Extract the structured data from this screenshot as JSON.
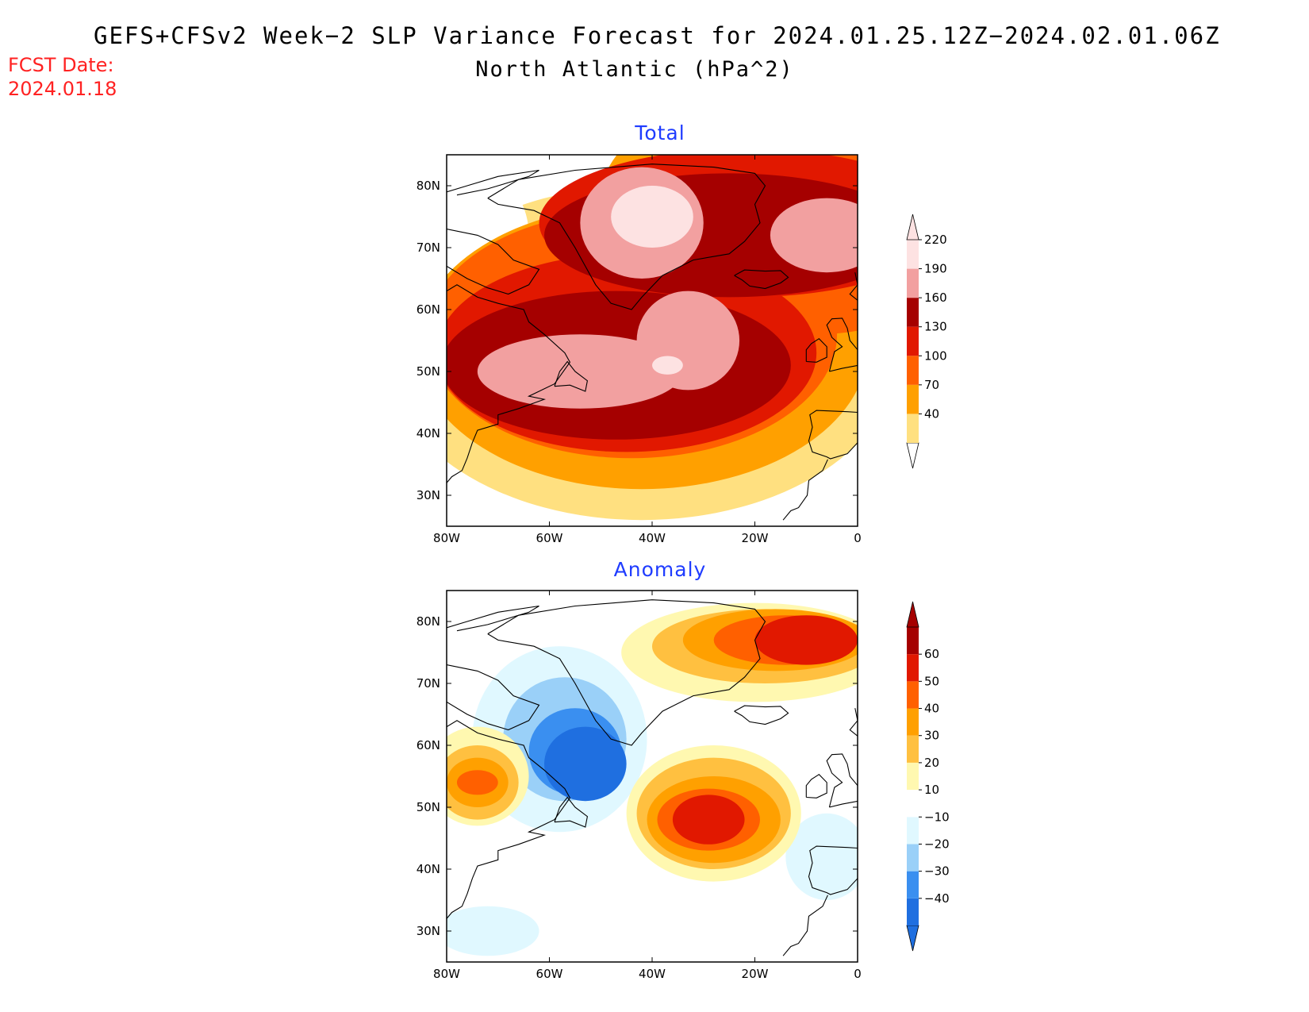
{
  "title": {
    "line1": "GEFS+CFSv2 Week−2 SLP Variance Forecast for 2024.01.25.12Z−2024.02.01.06Z",
    "line2": "North Atlantic (hPa^2)"
  },
  "forecast_date": {
    "label": "FCST Date:",
    "value": "2024.01.18"
  },
  "axes": {
    "lat_ticks": [
      "80N",
      "70N",
      "60N",
      "50N",
      "40N",
      "30N"
    ],
    "lat_values": [
      80,
      70,
      60,
      50,
      40,
      30
    ],
    "lon_ticks": [
      "80W",
      "60W",
      "40W",
      "20W",
      "0"
    ],
    "lon_values": [
      -80,
      -60,
      -40,
      -20,
      0
    ],
    "lat_range": [
      25,
      85
    ],
    "lon_range": [
      -80,
      0
    ]
  },
  "panels": [
    {
      "id": "total",
      "title": "Total",
      "colorbar": {
        "levels": [
          "40",
          "70",
          "100",
          "130",
          "160",
          "190",
          "220"
        ],
        "colors": [
          "#ffe080",
          "#ffa000",
          "#ff6000",
          "#e11800",
          "#a50000",
          "#f2a0a0",
          "#fde2e2"
        ],
        "extend_low": "#ffffff",
        "extend_high": "#fde2e2"
      },
      "field": {
        "base": "#ffffff",
        "features": [
          {
            "type": "blob",
            "lon": -42,
            "lat": 53,
            "rlon": 50,
            "rlat": 27,
            "rot": 0,
            "cls": 0
          },
          {
            "type": "blob",
            "lon": -10,
            "lat": 78,
            "rlon": 40,
            "rlat": 18,
            "rot": 0,
            "cls": 1
          },
          {
            "type": "blob",
            "lon": -78,
            "lat": 72,
            "rlon": 14,
            "rlat": 12,
            "rot": 0,
            "cls": -1
          },
          {
            "type": "blob",
            "lon": -42,
            "lat": 54,
            "rlon": 44,
            "rlat": 23,
            "rot": 0,
            "cls": 1
          },
          {
            "type": "blob",
            "lon": -8,
            "lat": 72,
            "rlon": 30,
            "rlat": 16,
            "rot": 0,
            "cls": 2
          },
          {
            "type": "blob",
            "lon": -44,
            "lat": 56,
            "rlon": 40,
            "rlat": 20,
            "rot": 0,
            "cls": 2
          },
          {
            "type": "blob",
            "lon": -22,
            "lat": 74,
            "rlon": 40,
            "rlat": 12,
            "rot": 0,
            "cls": 3
          },
          {
            "type": "blob",
            "lon": -45,
            "lat": 53,
            "rlon": 37,
            "rlat": 16,
            "rot": 0,
            "cls": 3
          },
          {
            "type": "blob",
            "lon": -25,
            "lat": 72,
            "rlon": 36,
            "rlat": 10,
            "rot": 0,
            "cls": 4
          },
          {
            "type": "blob",
            "lon": -47,
            "lat": 51,
            "rlon": 34,
            "rlat": 12,
            "rot": 0,
            "cls": 4
          },
          {
            "type": "blob",
            "lon": -42,
            "lat": 74,
            "rlon": 12,
            "rlat": 9,
            "rot": 0,
            "cls": 5
          },
          {
            "type": "blob",
            "lon": -6,
            "lat": 72,
            "rlon": 11,
            "rlat": 6,
            "rot": 0,
            "cls": 5
          },
          {
            "type": "blob",
            "lon": -54,
            "lat": 50,
            "rlon": 20,
            "rlat": 6,
            "rot": 0,
            "cls": 5
          },
          {
            "type": "blob",
            "lon": -33,
            "lat": 55,
            "rlon": 10,
            "rlat": 8,
            "rot": 0,
            "cls": 5
          },
          {
            "type": "blob",
            "lon": -40,
            "lat": 75,
            "rlon": 8,
            "rlat": 5,
            "rot": 0,
            "cls": 6
          },
          {
            "type": "blob",
            "lon": -37,
            "lat": 51,
            "rlon": 3,
            "rlat": 1.5,
            "rot": 0,
            "cls": 6
          }
        ]
      }
    },
    {
      "id": "anomaly",
      "title": "Anomaly",
      "colorbar": {
        "levels": [
          "−40",
          "−30",
          "−20",
          "−10",
          "10",
          "20",
          "30",
          "40",
          "50",
          "60"
        ],
        "colors": [
          "#1f6fe0",
          "#3a8ff0",
          "#9ad0f8",
          "#e0f8ff",
          "#ffffff",
          "#fff8b0",
          "#ffc040",
          "#ffa000",
          "#ff6000",
          "#e11800",
          "#a50000"
        ],
        "extend_low": "#1f6fe0",
        "extend_high": "#a50000"
      },
      "field": {
        "base": "#ffffff",
        "features": [
          {
            "type": "blob",
            "lon": -58,
            "lat": 61,
            "rlon": 17,
            "rlat": 15,
            "rot": 0,
            "cls": 3
          },
          {
            "type": "blob",
            "lon": -72,
            "lat": 30,
            "rlon": 10,
            "rlat": 4,
            "rot": 0,
            "cls": 3
          },
          {
            "type": "blob",
            "lon": -6,
            "lat": 42,
            "rlon": 8,
            "rlat": 7,
            "rot": 0,
            "cls": 3
          },
          {
            "type": "blob",
            "lon": -57,
            "lat": 61,
            "rlon": 12,
            "rlat": 10,
            "rot": 0,
            "cls": 2
          },
          {
            "type": "blob",
            "lon": -55,
            "lat": 59,
            "rlon": 9,
            "rlat": 7,
            "rot": 0,
            "cls": 1
          },
          {
            "type": "blob",
            "lon": -53,
            "lat": 57,
            "rlon": 8,
            "rlat": 6,
            "rot": 0,
            "cls": 0
          },
          {
            "type": "blob",
            "lon": -28,
            "lat": 49,
            "rlon": 17,
            "rlat": 11,
            "rot": 0,
            "cls": 5
          },
          {
            "type": "blob",
            "lon": -20,
            "lat": 75,
            "rlon": 26,
            "rlat": 8,
            "rot": 0,
            "cls": 5
          },
          {
            "type": "blob",
            "lon": -74,
            "lat": 55,
            "rlon": 10,
            "rlat": 8,
            "rot": 0,
            "cls": 5
          },
          {
            "type": "blob",
            "lon": -28,
            "lat": 49,
            "rlon": 15,
            "rlat": 9,
            "rot": 0,
            "cls": 6
          },
          {
            "type": "blob",
            "lon": -18,
            "lat": 76,
            "rlon": 22,
            "rlat": 6,
            "rot": 0,
            "cls": 6
          },
          {
            "type": "blob",
            "lon": -74,
            "lat": 54,
            "rlon": 8,
            "rlat": 6,
            "rot": 0,
            "cls": 6
          },
          {
            "type": "blob",
            "lon": -28,
            "lat": 48,
            "rlon": 13,
            "rlat": 7,
            "rot": 0,
            "cls": 7
          },
          {
            "type": "blob",
            "lon": -16,
            "lat": 77,
            "rlon": 18,
            "rlat": 5,
            "rot": 0,
            "cls": 7
          },
          {
            "type": "blob",
            "lon": -74,
            "lat": 54,
            "rlon": 6,
            "rlat": 4,
            "rot": 0,
            "cls": 7
          },
          {
            "type": "blob",
            "lon": -29,
            "lat": 48,
            "rlon": 10,
            "rlat": 5,
            "rot": 0,
            "cls": 8
          },
          {
            "type": "blob",
            "lon": -14,
            "lat": 77,
            "rlon": 14,
            "rlat": 4,
            "rot": 0,
            "cls": 8
          },
          {
            "type": "blob",
            "lon": -74,
            "lat": 54,
            "rlon": 4,
            "rlat": 2,
            "rot": 0,
            "cls": 8
          },
          {
            "type": "blob",
            "lon": -29,
            "lat": 48,
            "rlon": 7,
            "rlat": 4,
            "rot": 0,
            "cls": 9
          },
          {
            "type": "blob",
            "lon": -10,
            "lat": 77,
            "rlon": 10,
            "rlat": 4,
            "rot": 0,
            "cls": 9
          }
        ]
      }
    }
  ]
}
